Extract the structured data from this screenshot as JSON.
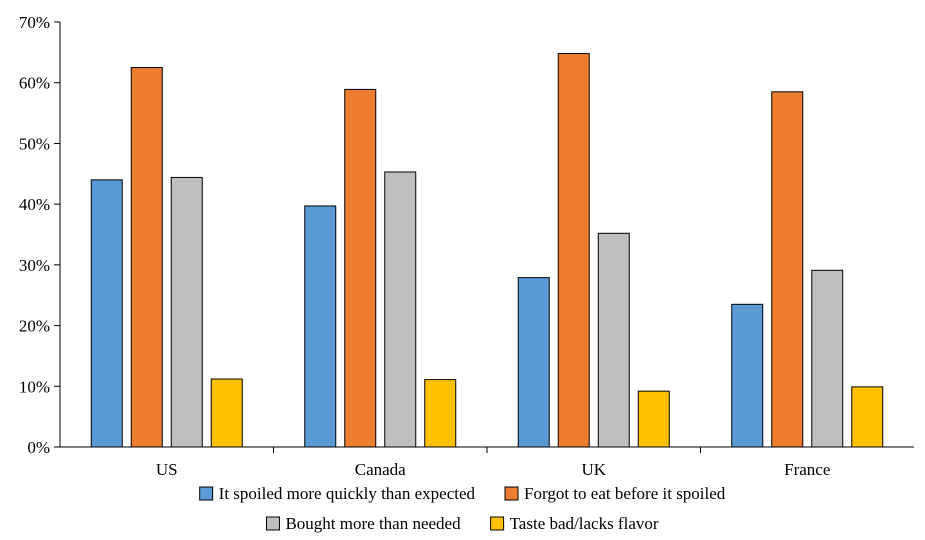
{
  "chart_data": {
    "type": "bar",
    "title": "",
    "xlabel": "",
    "ylabel": "",
    "categories": [
      "US",
      "Canada",
      "UK",
      "France"
    ],
    "ylim": [
      0,
      70
    ],
    "y_ticks": [
      0,
      10,
      20,
      30,
      40,
      50,
      60,
      70
    ],
    "y_tick_format": "percent",
    "grid": false,
    "legend_position": "bottom",
    "series": [
      {
        "name": "It spoiled more quickly than expected",
        "color": "#5b9bd5",
        "values": [
          44.0,
          39.7,
          27.9,
          23.5
        ]
      },
      {
        "name": "Forgot to eat before it spoiled",
        "color": "#ed7d31",
        "values": [
          62.5,
          58.9,
          64.8,
          58.5
        ]
      },
      {
        "name": "Bought more than needed",
        "color": "#bfbfbf",
        "values": [
          44.4,
          45.3,
          35.2,
          29.1
        ]
      },
      {
        "name": "Taste bad/lacks flavor",
        "color": "#ffc000",
        "values": [
          11.2,
          11.1,
          9.2,
          9.9
        ]
      }
    ]
  }
}
